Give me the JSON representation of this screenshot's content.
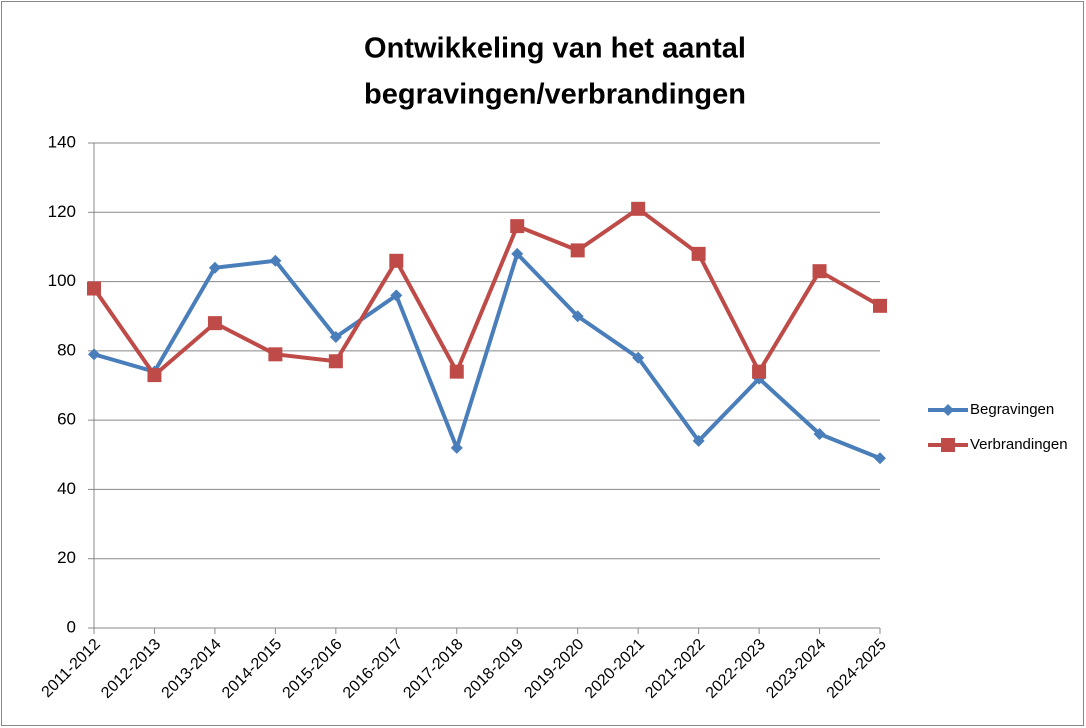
{
  "chart_data": {
    "type": "line",
    "title": [
      "Ontwikkeling van het aantal",
      "begravingen/verbrandingen"
    ],
    "categories": [
      "2011-2012",
      "2012-2013",
      "2013-2014",
      "2014-2015",
      "2015-2016",
      "2016-2017",
      "2017-2018",
      "2018-2019",
      "2019-2020",
      "2020-2021",
      "2021-2022",
      "2022-2023",
      "2023-2024",
      "2024-2025"
    ],
    "series": [
      {
        "name": "Begravingen",
        "color": "#4a7ebb",
        "marker": "diamond",
        "values": [
          79,
          74,
          104,
          106,
          84,
          96,
          52,
          108,
          90,
          78,
          54,
          72,
          56,
          49
        ]
      },
      {
        "name": "Verbrandingen",
        "color": "#be4b48",
        "marker": "square",
        "values": [
          98,
          73,
          88,
          79,
          77,
          106,
          74,
          116,
          109,
          121,
          108,
          74,
          103,
          93
        ]
      }
    ],
    "ylim": [
      0,
      140
    ],
    "yticks": [
      0,
      20,
      40,
      60,
      80,
      100,
      120,
      140
    ],
    "grid": true,
    "legend": "right"
  }
}
